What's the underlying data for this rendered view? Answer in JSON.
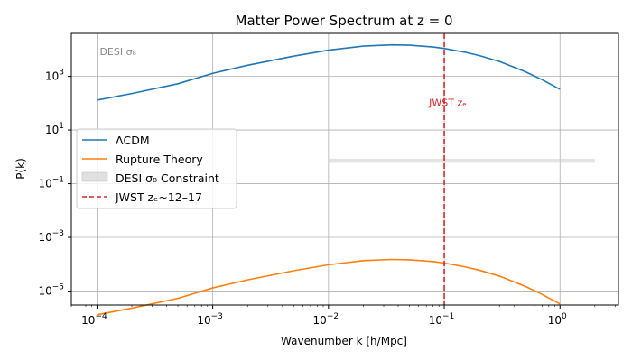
{
  "chart_data": {
    "type": "line",
    "title": "Matter Power Spectrum at z = 0",
    "xlabel": "Wavenumber k [h/Mpc]",
    "ylabel": "P(k)",
    "xscale": "log",
    "yscale": "log",
    "xlim": [
      6e-05,
      3.2
    ],
    "ylim": [
      3e-06,
      40000
    ],
    "grid": true,
    "legend_position": "center-left",
    "x_ticks": [
      {
        "value": 0.0001,
        "base": "10",
        "exp": "−4"
      },
      {
        "value": 0.001,
        "base": "10",
        "exp": "−3"
      },
      {
        "value": 0.01,
        "base": "10",
        "exp": "−2"
      },
      {
        "value": 0.1,
        "base": "10",
        "exp": "−1"
      },
      {
        "value": 1,
        "base": "10",
        "exp": "0"
      }
    ],
    "y_ticks": [
      {
        "value": 1e-05,
        "base": "10",
        "exp": "−5"
      },
      {
        "value": 0.001,
        "base": "10",
        "exp": "−3"
      },
      {
        "value": 0.1,
        "base": "10",
        "exp": "−1"
      },
      {
        "value": 10,
        "base": "10",
        "exp": "1"
      },
      {
        "value": 1000,
        "base": "10",
        "exp": "3"
      }
    ],
    "series": [
      {
        "name": "ΛCDM",
        "color": "#1f77b4",
        "points": [
          [
            0.0001,
            130
          ],
          [
            0.0002,
            230
          ],
          [
            0.0005,
            530
          ],
          [
            0.001,
            1300
          ],
          [
            0.002,
            2600
          ],
          [
            0.005,
            5700
          ],
          [
            0.01,
            9500
          ],
          [
            0.02,
            13500
          ],
          [
            0.035,
            15000
          ],
          [
            0.05,
            14500
          ],
          [
            0.08,
            12500
          ],
          [
            0.1,
            11000
          ],
          [
            0.15,
            8000
          ],
          [
            0.2,
            6000
          ],
          [
            0.3,
            3600
          ],
          [
            0.5,
            1500
          ],
          [
            0.7,
            750
          ],
          [
            1.0,
            330
          ]
        ]
      },
      {
        "name": "Rupture Theory",
        "color": "#ff7f0e",
        "points": [
          [
            0.0001,
            1.3e-06
          ],
          [
            0.0002,
            2.3e-06
          ],
          [
            0.0005,
            5.3e-06
          ],
          [
            0.001,
            1.3e-05
          ],
          [
            0.002,
            2.6e-05
          ],
          [
            0.005,
            5.7e-05
          ],
          [
            0.01,
            9.5e-05
          ],
          [
            0.02,
            0.000135
          ],
          [
            0.035,
            0.00015
          ],
          [
            0.05,
            0.000145
          ],
          [
            0.08,
            0.000125
          ],
          [
            0.1,
            0.00011
          ],
          [
            0.15,
            8e-05
          ],
          [
            0.2,
            6e-05
          ],
          [
            0.3,
            3.6e-05
          ],
          [
            0.5,
            1.5e-05
          ],
          [
            0.7,
            7.5e-06
          ],
          [
            1.0,
            3.3e-06
          ]
        ]
      }
    ],
    "band": {
      "name": "DESI σ₈ Constraint",
      "color": "#cccccc",
      "x_range": [
        0.01,
        2.0
      ],
      "y_range": [
        0.6,
        0.85
      ]
    },
    "vline": {
      "name": "JWST zₑ~12–17",
      "color": "#d62728",
      "x": 0.1
    },
    "annotations": [
      {
        "text": "DESI σ₈",
        "x": 0.0001,
        "y": 8000,
        "color": "#888888"
      },
      {
        "text": "JWST zₑ",
        "x": 0.07,
        "y": 100,
        "color": "#d62728"
      }
    ]
  }
}
